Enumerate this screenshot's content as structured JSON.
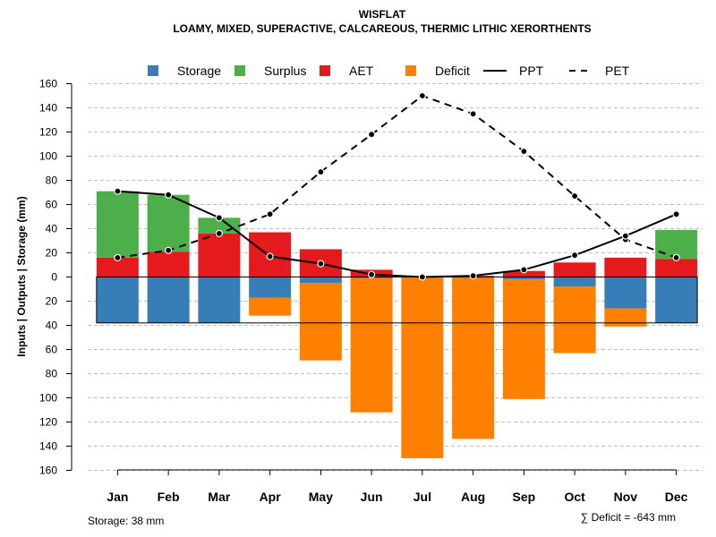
{
  "chart_data": {
    "type": "bar",
    "title": "WISFLAT",
    "subtitle": "LOAMY, MIXED, SUPERACTIVE, CALCAREOUS, THERMIC LITHIC XERORTHENTS",
    "ylabel": "Inputs | Outputs | Storage    (mm)",
    "ylim": [
      -160,
      160
    ],
    "yticks": [
      160,
      140,
      120,
      100,
      80,
      60,
      40,
      20,
      0,
      20,
      40,
      60,
      80,
      100,
      120,
      140,
      160
    ],
    "categories": [
      "Jan",
      "Feb",
      "Mar",
      "Apr",
      "May",
      "Jun",
      "Jul",
      "Aug",
      "Sep",
      "Oct",
      "Nov",
      "Dec"
    ],
    "series": [
      {
        "name": "Storage",
        "color": "#377eb8",
        "values": [
          -38,
          -38,
          -38,
          -17,
          -5,
          -1,
          0,
          0,
          -2,
          -8,
          -26,
          -38
        ]
      },
      {
        "name": "Surplus",
        "color": "#4daf4a",
        "values": [
          55,
          47,
          13,
          0,
          0,
          0,
          0,
          0,
          0,
          0,
          0,
          24
        ]
      },
      {
        "name": "AET",
        "color": "#e41a1c",
        "values": [
          16,
          21,
          36,
          37,
          23,
          6,
          0,
          1,
          5,
          12,
          16,
          15
        ]
      },
      {
        "name": "Deficit",
        "color": "#ff7f00",
        "values": [
          0,
          0,
          0,
          -15,
          -64,
          -111,
          -150,
          -134,
          -99,
          -55,
          -15,
          0
        ]
      },
      {
        "name": "PPT",
        "style": "solid",
        "values": [
          71,
          68,
          49,
          17,
          11,
          2,
          0,
          1,
          6,
          18,
          34,
          52
        ]
      },
      {
        "name": "PET",
        "style": "dashed",
        "values": [
          16,
          22,
          36,
          52,
          87,
          118,
          150,
          135,
          104,
          67,
          31,
          16
        ]
      }
    ],
    "storage_capacity": 38,
    "legend_position": "top",
    "grid": true
  },
  "footer": {
    "storage": "Storage: 38 mm",
    "deficit": "∑ Deficit = -643 mm"
  }
}
